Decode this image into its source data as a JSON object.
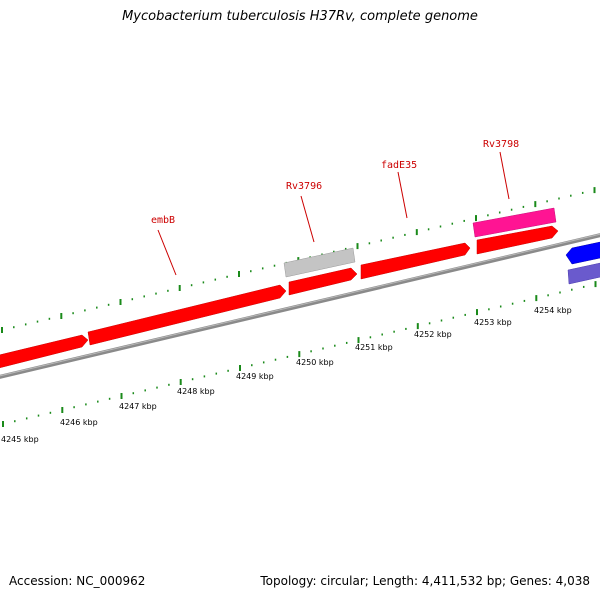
{
  "title": "Mycobacterium tuberculosis H37Rv, complete genome",
  "footer": {
    "accession": "Accession: NC_000962",
    "summary": "Topology: circular; Length: 4,411,532 bp; Genes: 4,038"
  },
  "colors": {
    "forward_gene": "#ff0000",
    "rv3798_gene": "#ff1493",
    "gray_feature": "#c0c0c0",
    "reverse_gene": "#0000ff",
    "reverse_gene_light": "#6a5acd",
    "backbone": "#808080",
    "ticks": "#1a8a1a",
    "label": "#cc0000"
  },
  "gene_labels": [
    {
      "id": "embB",
      "text": "embB"
    },
    {
      "id": "rv3796",
      "text": "Rv3796"
    },
    {
      "id": "fade35",
      "text": "fadE35"
    },
    {
      "id": "rv3798",
      "text": "Rv3798"
    }
  ],
  "scale_labels": [
    "4245 kbp",
    "4246 kbp",
    "4247 kbp",
    "4248 kbp",
    "4249 kbp",
    "4250 kbp",
    "4251 kbp",
    "4252 kbp",
    "4253 kbp",
    "4254 kbp"
  ]
}
